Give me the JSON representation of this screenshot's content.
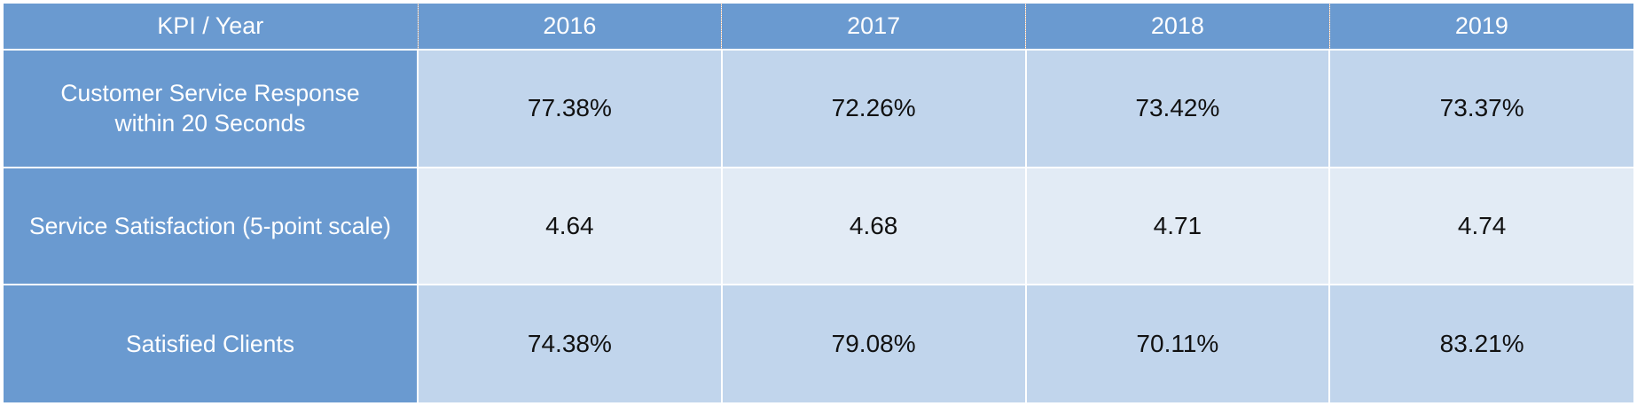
{
  "chart_data": {
    "type": "table",
    "header": {
      "corner": "KPI / Year",
      "years": [
        "2016",
        "2017",
        "2018",
        "2019"
      ]
    },
    "rows": [
      {
        "kpi_line1": "Customer Service Response",
        "kpi_line2": "within 20 Seconds",
        "values": [
          "77.38%",
          "72.26%",
          "73.42%",
          "73.37%"
        ]
      },
      {
        "kpi_line1": "Service Satisfaction (5-point scale)",
        "kpi_line2": "",
        "values": [
          "4.64",
          "4.68",
          "4.71",
          "4.74"
        ]
      },
      {
        "kpi_line1": "Satisfied Clients",
        "kpi_line2": "",
        "values": [
          "74.38%",
          "79.08%",
          "70.11%",
          "83.21%"
        ]
      }
    ]
  },
  "colors": {
    "header_fill": "#6a9ad0",
    "row_band_dark": "#c1d5ec",
    "row_band_light": "#e2ebf5",
    "header_text": "#ffffff",
    "cell_text": "#111111"
  }
}
